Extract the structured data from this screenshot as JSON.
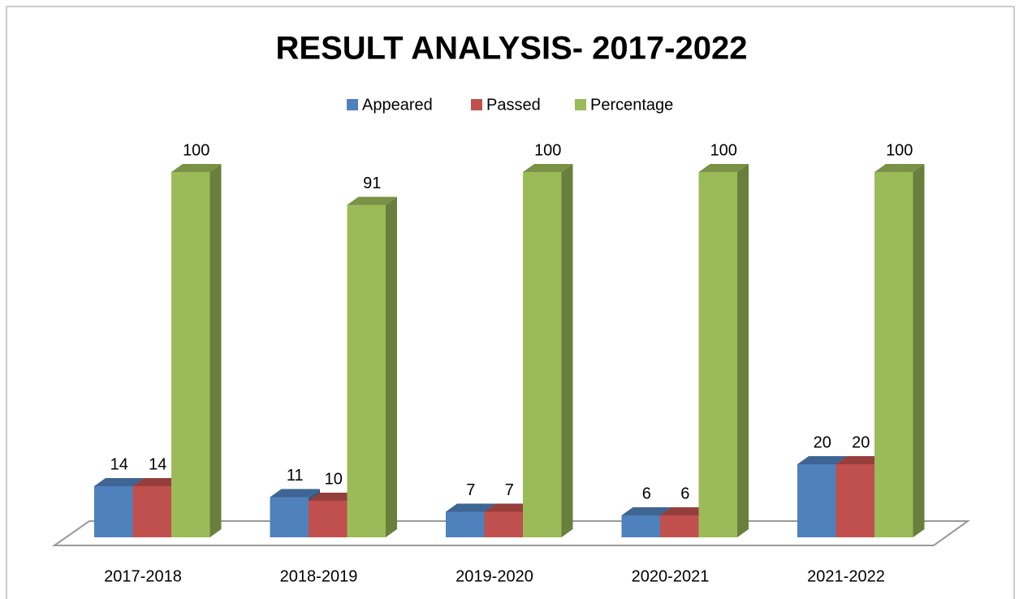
{
  "chart_data": {
    "type": "bar3d",
    "title": "RESULT ANALYSIS- 2017-2022",
    "categories": [
      "2017-2018",
      "2018-2019",
      "2019-2020",
      "2020-2021",
      "2021-2022"
    ],
    "series": [
      {
        "name": "Appeared",
        "color": "#4f81bd",
        "values": [
          14,
          11,
          7,
          6,
          20
        ]
      },
      {
        "name": "Passed",
        "color": "#c0504d",
        "values": [
          14,
          10,
          7,
          6,
          20
        ]
      },
      {
        "name": "Percentage",
        "color": "#9bbb59",
        "values": [
          100,
          91,
          100,
          100,
          100
        ]
      }
    ],
    "legend": "top"
  }
}
